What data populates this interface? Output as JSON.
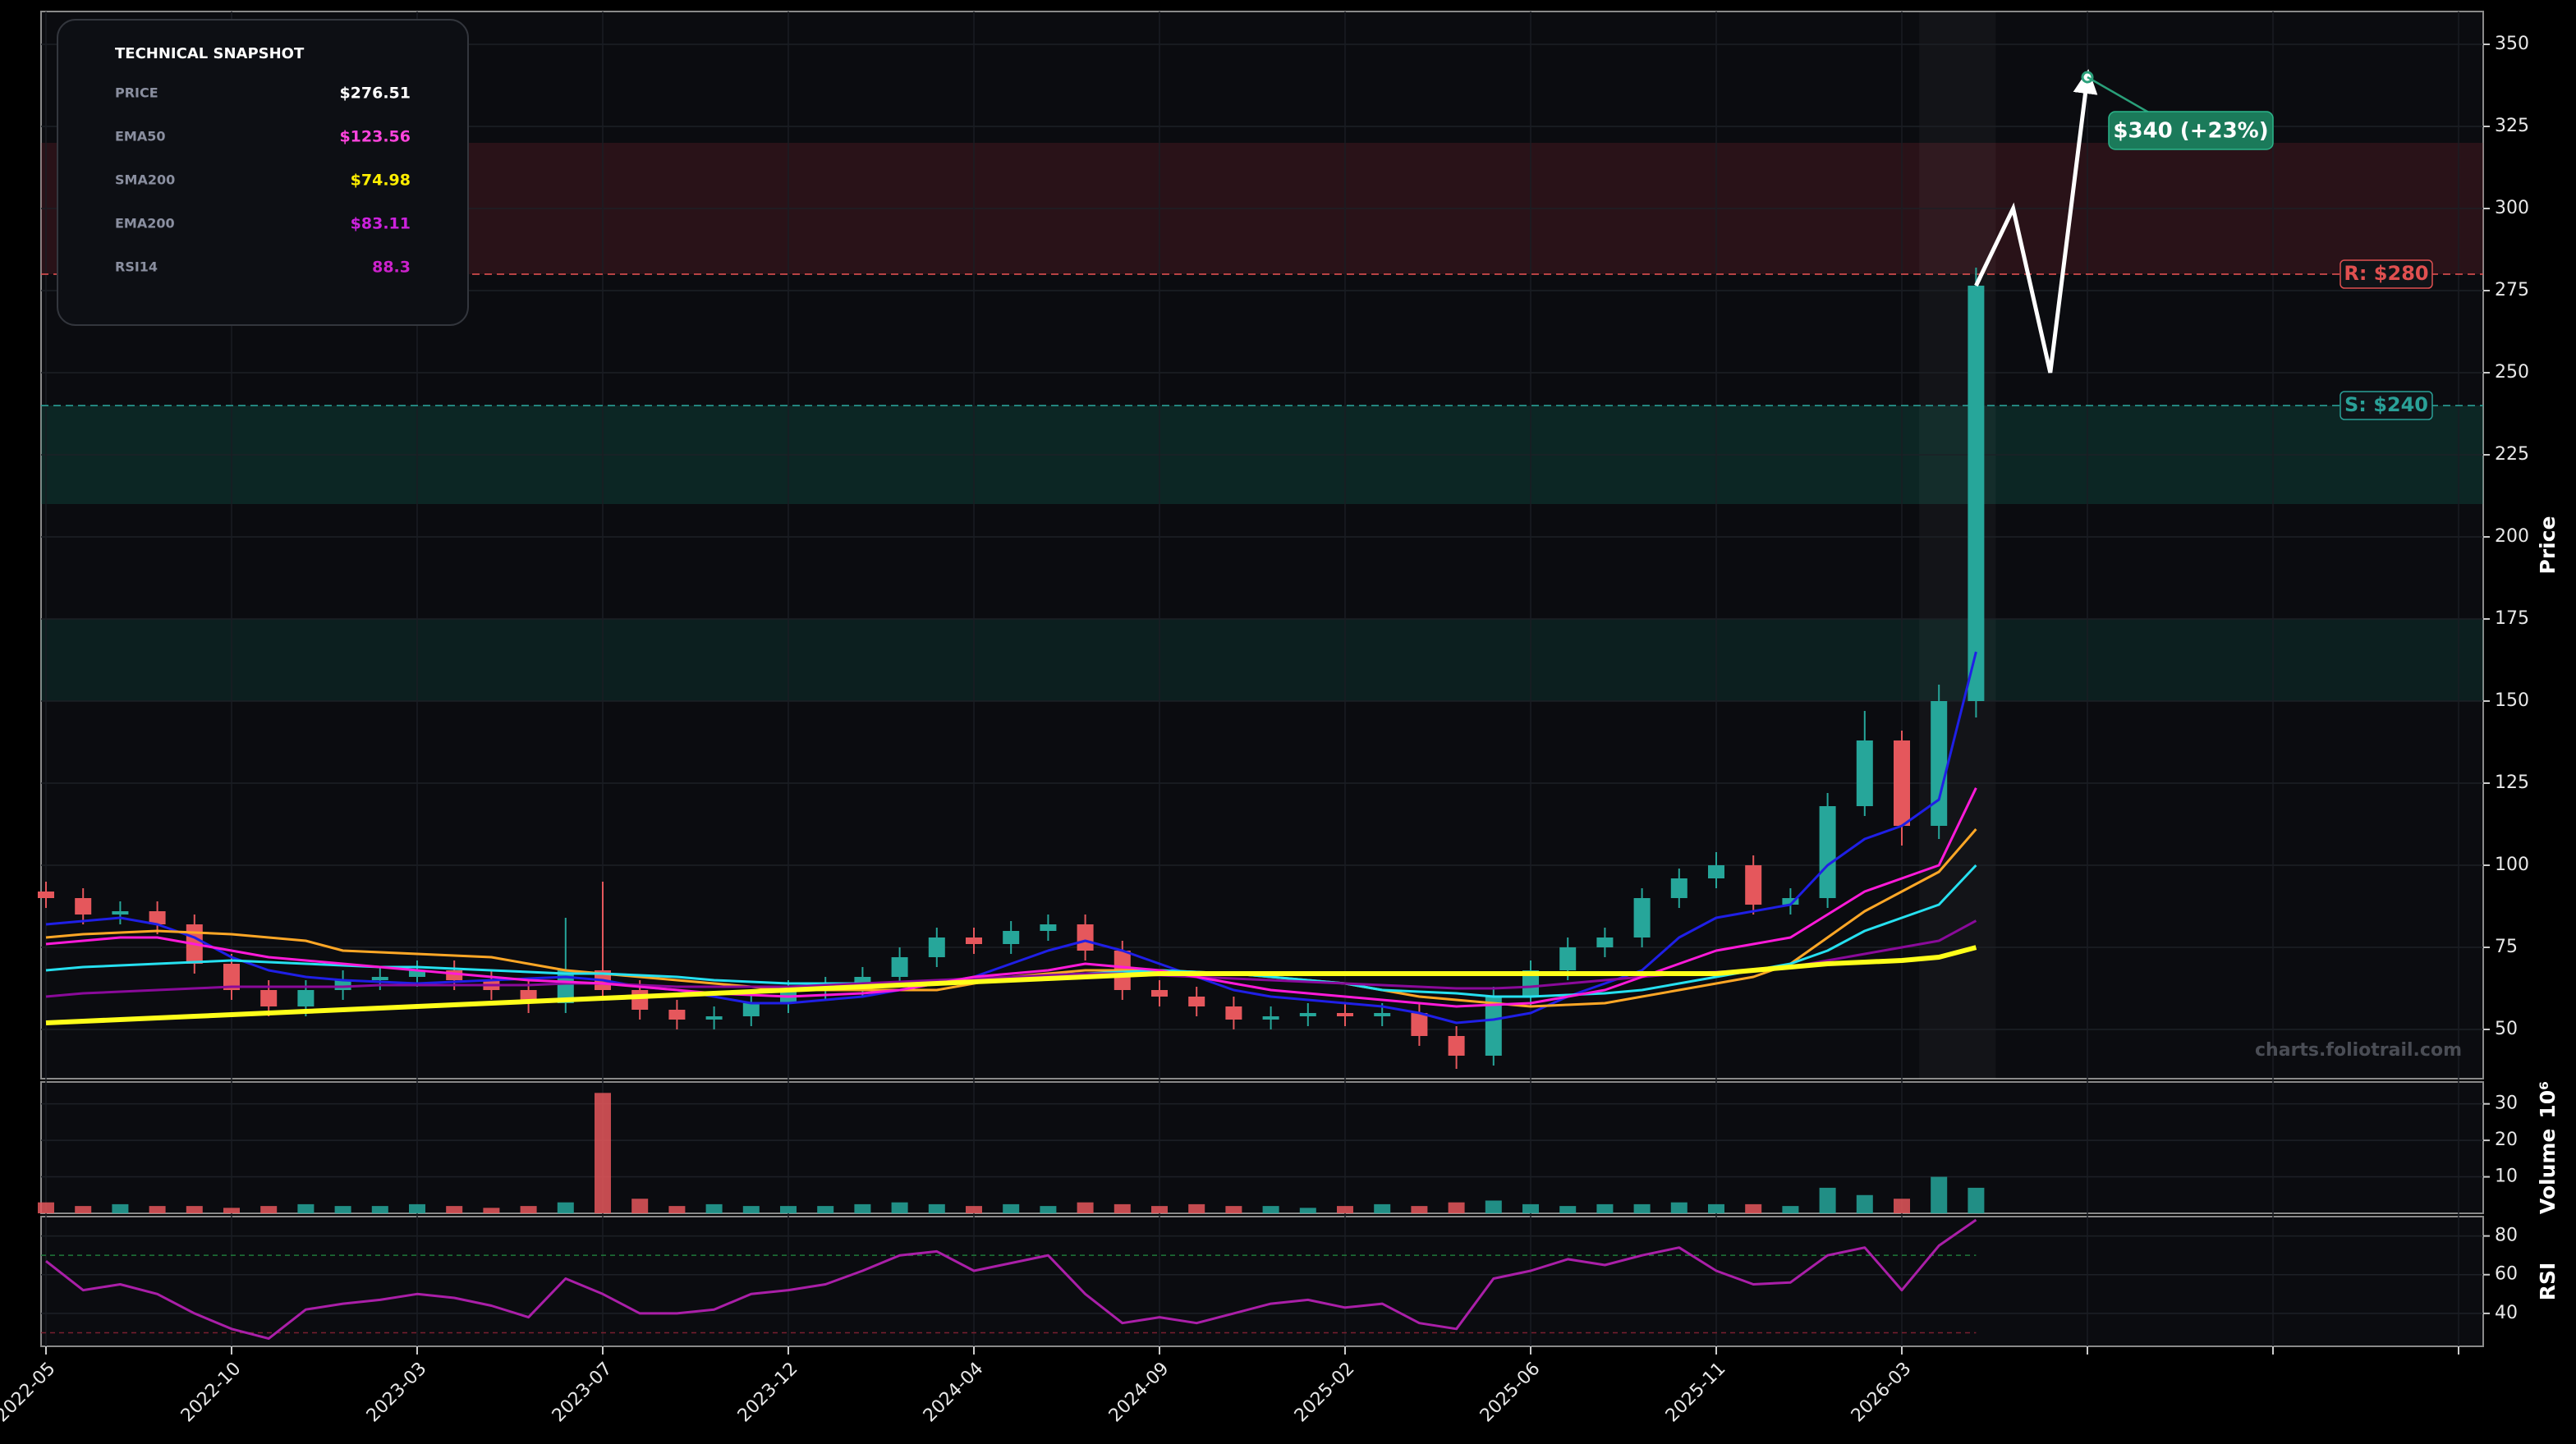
{
  "snapshot": {
    "title": "TECHNICAL SNAPSHOT",
    "rows": [
      {
        "label": "PRICE",
        "value": "$276.51",
        "color": "#ffffff"
      },
      {
        "label": "EMA50",
        "value": "$123.56",
        "color": "#ff44dd"
      },
      {
        "label": "SMA200",
        "value": "$74.98",
        "color": "#ffee00"
      },
      {
        "label": "EMA200",
        "value": "$83.11",
        "color": "#cc22dd"
      },
      {
        "label": "RSI14",
        "value": "88.3",
        "color": "#cc22cc"
      }
    ]
  },
  "chart_data": [
    {
      "type": "candlestick",
      "y_label": "Price",
      "grid": true,
      "up_color": "#26a69a",
      "down_color": "#e5575c",
      "ylim": [
        35,
        360
      ],
      "yticks": [
        50,
        75,
        100,
        125,
        150,
        175,
        200,
        225,
        250,
        275,
        300,
        325,
        350
      ],
      "open": [
        92,
        90,
        85,
        86,
        82,
        70,
        62,
        57,
        62,
        65,
        66,
        68,
        65,
        62,
        58,
        68,
        62,
        56,
        53,
        54,
        58,
        62,
        63,
        66,
        72,
        78,
        76,
        80,
        82,
        74,
        62,
        60,
        57,
        53,
        54,
        55,
        54,
        55,
        48,
        42,
        60,
        68,
        75,
        78,
        90,
        96,
        100,
        88,
        90,
        118,
        138,
        112,
        150
      ],
      "high": [
        95,
        93,
        89,
        89,
        85,
        73,
        65,
        65,
        68,
        69,
        71,
        71,
        68,
        65,
        84,
        95,
        65,
        59,
        57,
        61,
        65,
        66,
        69,
        75,
        81,
        81,
        83,
        85,
        85,
        77,
        65,
        63,
        60,
        57,
        58,
        58,
        58,
        58,
        51,
        63,
        71,
        78,
        81,
        93,
        99,
        104,
        103,
        93,
        122,
        147,
        141,
        155,
        282
      ],
      "low": [
        87,
        82,
        82,
        79,
        67,
        59,
        54,
        54,
        59,
        62,
        63,
        62,
        59,
        55,
        55,
        59,
        53,
        50,
        50,
        51,
        55,
        59,
        60,
        63,
        69,
        73,
        73,
        77,
        71,
        59,
        57,
        54,
        50,
        50,
        51,
        51,
        51,
        45,
        38,
        39,
        57,
        65,
        72,
        75,
        87,
        93,
        85,
        85,
        87,
        115,
        106,
        108,
        145
      ],
      "close": [
        90,
        85,
        86,
        82,
        70,
        62,
        57,
        62,
        65,
        66,
        68,
        65,
        62,
        58,
        68,
        62,
        56,
        53,
        54,
        58,
        62,
        63,
        66,
        72,
        78,
        76,
        80,
        82,
        74,
        62,
        60,
        57,
        53,
        54,
        55,
        54,
        55,
        48,
        42,
        60,
        68,
        75,
        78,
        90,
        96,
        100,
        88,
        90,
        118,
        138,
        112,
        150,
        276.51
      ],
      "series": [
        {
          "color": "#1f1fe6",
          "values": [
            82,
            83,
            84,
            82,
            78,
            72,
            68,
            66,
            65,
            64.5,
            64,
            64.5,
            65,
            65.5,
            66,
            65,
            63,
            62,
            60,
            58,
            58,
            59,
            60,
            62,
            64,
            66,
            70,
            74,
            77,
            74,
            70,
            66,
            62,
            60,
            59,
            58,
            57,
            55,
            52,
            53,
            55,
            60,
            64,
            68,
            78,
            84,
            86,
            88,
            100,
            108,
            112,
            120,
            165
          ]
        },
        {
          "color": "#ffa726",
          "values": [
            78,
            79,
            79.5,
            80,
            79.5,
            79,
            78,
            77,
            74,
            73.5,
            73,
            72.5,
            72,
            70,
            68,
            67,
            66,
            65,
            64,
            63,
            62,
            62,
            62,
            62,
            62,
            64,
            66,
            67,
            68,
            68,
            68,
            67.5,
            67,
            66,
            65,
            64,
            62,
            60,
            59,
            58,
            57,
            57.5,
            58,
            60,
            62,
            64,
            66,
            70,
            78,
            86,
            92,
            98,
            111
          ]
        },
        {
          "color": "#26e0f0",
          "values": [
            68,
            69,
            69.5,
            70,
            70.5,
            71,
            70.5,
            70,
            69.5,
            69,
            69,
            68.5,
            68,
            67.5,
            67,
            67,
            66.5,
            66,
            65,
            64.5,
            64,
            64,
            64,
            64,
            64,
            64.5,
            65.5,
            66.5,
            67,
            67.5,
            68,
            67.5,
            67,
            66,
            65,
            64,
            62,
            61.5,
            61,
            60,
            60,
            60.5,
            61,
            62,
            64,
            66,
            68,
            70,
            74,
            80,
            84,
            88,
            100
          ]
        },
        {
          "color": "#8a0a9a",
          "values": [
            60,
            61,
            61.5,
            62,
            62.5,
            63,
            63,
            63,
            63,
            63.5,
            63.5,
            63.5,
            63.5,
            63.5,
            64,
            64,
            63.5,
            63,
            63,
            63,
            63,
            63.5,
            64,
            64.5,
            65,
            65.5,
            66,
            66.5,
            67,
            67,
            66.5,
            66,
            65.5,
            65,
            64.5,
            64,
            63.5,
            63,
            62.5,
            62.5,
            63,
            64,
            65,
            66,
            67,
            67.5,
            68,
            69,
            71,
            73,
            75,
            77,
            83.11
          ]
        },
        {
          "color": "#ff1ad9",
          "values": [
            76,
            77,
            78,
            78,
            76,
            74,
            72,
            71,
            70,
            69,
            68,
            67,
            66,
            65,
            64.5,
            64,
            63,
            62,
            61,
            60.5,
            60,
            60.5,
            61,
            62,
            64,
            66,
            67,
            68,
            70,
            69,
            68,
            66,
            64,
            62,
            61,
            60,
            59,
            58,
            57,
            57.5,
            58,
            60,
            62,
            66,
            70,
            74,
            76,
            78,
            85,
            92,
            96,
            100,
            123.56
          ]
        },
        {
          "color": "#ffff1a",
          "values": [
            52,
            52.5,
            53,
            53.5,
            54,
            54.5,
            55,
            55.5,
            56,
            56.5,
            57,
            57.5,
            58,
            58.5,
            59,
            59.5,
            60,
            60.5,
            61,
            61.5,
            62,
            62.5,
            63,
            63.5,
            64,
            64.5,
            65,
            65.5,
            66,
            66.5,
            67,
            67,
            67,
            67,
            67,
            67,
            67,
            67,
            67,
            67,
            67,
            67,
            67,
            67,
            67,
            67,
            68,
            69,
            70,
            70.5,
            71,
            72,
            74.98
          ]
        }
      ],
      "forecast": {
        "color": "#ffffff",
        "values": [
          276.51,
          300,
          250,
          340
        ]
      },
      "annotation": {
        "text": "$340 (+23%)",
        "value": 340,
        "color": "#1b7a5a"
      },
      "levels": [
        {
          "label": "R: $280",
          "value": 280,
          "color": "#e05050"
        },
        {
          "label": "S: $240",
          "value": 240,
          "color": "#2aa198"
        }
      ],
      "zones": [
        {
          "range": [
            280,
            320
          ],
          "color": "rgba(150,40,55,0.22)"
        },
        {
          "range": [
            210,
            240
          ],
          "color": "rgba(20,130,110,0.22)"
        },
        {
          "range": [
            150,
            175
          ],
          "color": "rgba(20,130,110,0.16)"
        }
      ],
      "watermark": "charts.foliotrail.com"
    },
    {
      "type": "bar",
      "y_label": "Volume",
      "y_scale_label": "10⁶",
      "grid": true,
      "ylim": [
        0,
        36
      ],
      "yticks": [
        10,
        20,
        30
      ],
      "values": [
        3,
        2,
        2.5,
        2,
        2,
        1.5,
        2,
        2.5,
        2,
        2,
        2.5,
        2,
        1.5,
        2,
        3,
        33,
        4,
        2,
        2.5,
        2,
        2,
        2,
        2.5,
        3,
        2.5,
        2,
        2.5,
        2,
        3,
        2.5,
        2,
        2.5,
        2,
        2,
        1.5,
        2,
        2.5,
        2,
        3,
        3.5,
        2.5,
        2,
        2.5,
        2.5,
        3,
        2.5,
        2.5,
        2,
        7,
        5,
        4,
        10,
        7
      ]
    },
    {
      "type": "line",
      "y_label": "RSI",
      "grid": true,
      "color": "#aa1fa8",
      "ylim": [
        23,
        90
      ],
      "yticks": [
        40,
        60,
        80
      ],
      "levels": [
        {
          "value": 70,
          "color": "#1f7a3a"
        },
        {
          "value": 30,
          "color": "#7a1f2f"
        }
      ],
      "categories": [
        "2022-05",
        null,
        null,
        null,
        null,
        "2022-10",
        null,
        null,
        null,
        null,
        "2023-03",
        null,
        null,
        null,
        null,
        "2023-07",
        null,
        null,
        null,
        null,
        "2023-12",
        null,
        null,
        null,
        null,
        "2024-04",
        null,
        null,
        null,
        null,
        "2024-09",
        null,
        null,
        null,
        null,
        "2025-02",
        null,
        null,
        null,
        null,
        "2025-06",
        null,
        null,
        null,
        null,
        "2025-11",
        null,
        null,
        null,
        null,
        "2026-03",
        null,
        null,
        null,
        null,
        null,
        null,
        null,
        null,
        null,
        null,
        null,
        null,
        null,
        null,
        null
      ],
      "values": [
        67,
        52,
        55,
        50,
        40,
        32,
        27,
        42,
        45,
        47,
        50,
        48,
        44,
        38,
        58,
        50,
        40,
        40,
        42,
        50,
        52,
        55,
        62,
        70,
        72,
        62,
        66,
        70,
        50,
        35,
        38,
        35,
        40,
        45,
        47,
        43,
        45,
        35,
        32,
        58,
        62,
        68,
        65,
        70,
        74,
        62,
        55,
        56,
        70,
        74,
        52,
        75,
        88.3,
        null,
        null,
        null,
        null,
        null,
        null,
        null,
        null,
        null,
        null,
        null,
        null,
        null
      ]
    }
  ]
}
